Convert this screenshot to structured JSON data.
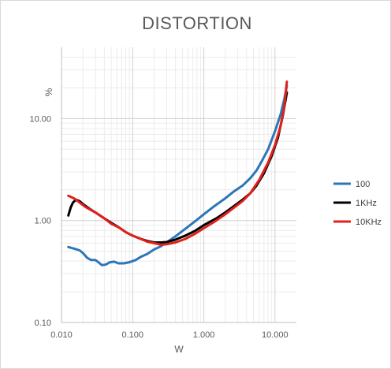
{
  "chart_data": {
    "type": "line",
    "title": "DISTORTION",
    "xlabel": "W",
    "ylabel": "%",
    "xscale": "log",
    "yscale": "log",
    "xlim": [
      0.01,
      20
    ],
    "ylim": [
      0.1,
      50
    ],
    "x_ticks": [
      {
        "value": 0.01,
        "label": "0.010"
      },
      {
        "value": 0.1,
        "label": "0.100"
      },
      {
        "value": 1,
        "label": "1.000"
      },
      {
        "value": 10,
        "label": "10.000"
      }
    ],
    "y_ticks": [
      {
        "value": 0.1,
        "label": "0.10"
      },
      {
        "value": 1,
        "label": "1.00"
      },
      {
        "value": 10,
        "label": "10.00"
      }
    ],
    "grid": true,
    "legend_position": "right",
    "series": [
      {
        "name": "100",
        "color": "#2e75b6",
        "points": [
          [
            0.0125,
            0.55
          ],
          [
            0.015,
            0.53
          ],
          [
            0.018,
            0.51
          ],
          [
            0.02,
            0.48
          ],
          [
            0.023,
            0.43
          ],
          [
            0.026,
            0.41
          ],
          [
            0.03,
            0.41
          ],
          [
            0.033,
            0.39
          ],
          [
            0.037,
            0.365
          ],
          [
            0.042,
            0.37
          ],
          [
            0.048,
            0.39
          ],
          [
            0.055,
            0.395
          ],
          [
            0.063,
            0.38
          ],
          [
            0.075,
            0.38
          ],
          [
            0.09,
            0.39
          ],
          [
            0.11,
            0.41
          ],
          [
            0.13,
            0.44
          ],
          [
            0.16,
            0.47
          ],
          [
            0.2,
            0.52
          ],
          [
            0.25,
            0.56
          ],
          [
            0.3,
            0.61
          ],
          [
            0.4,
            0.7
          ],
          [
            0.55,
            0.83
          ],
          [
            0.75,
            0.98
          ],
          [
            1.0,
            1.15
          ],
          [
            1.4,
            1.38
          ],
          [
            2.0,
            1.65
          ],
          [
            2.7,
            1.95
          ],
          [
            3.5,
            2.2
          ],
          [
            4.5,
            2.6
          ],
          [
            5.5,
            3.1
          ],
          [
            6.5,
            3.8
          ],
          [
            8.0,
            5.0
          ],
          [
            10.0,
            7.5
          ],
          [
            12.0,
            11.0
          ],
          [
            13.5,
            15.5
          ],
          [
            14.7,
            21.0
          ]
        ]
      },
      {
        "name": "1KHz",
        "color": "#000000",
        "points": [
          [
            0.0125,
            1.12
          ],
          [
            0.0135,
            1.35
          ],
          [
            0.0145,
            1.5
          ],
          [
            0.016,
            1.6
          ],
          [
            0.018,
            1.55
          ],
          [
            0.02,
            1.45
          ],
          [
            0.025,
            1.3
          ],
          [
            0.03,
            1.2
          ],
          [
            0.04,
            1.05
          ],
          [
            0.05,
            0.95
          ],
          [
            0.065,
            0.85
          ],
          [
            0.08,
            0.77
          ],
          [
            0.1,
            0.71
          ],
          [
            0.13,
            0.66
          ],
          [
            0.16,
            0.63
          ],
          [
            0.2,
            0.61
          ],
          [
            0.25,
            0.61
          ],
          [
            0.3,
            0.615
          ],
          [
            0.4,
            0.65
          ],
          [
            0.55,
            0.71
          ],
          [
            0.75,
            0.79
          ],
          [
            1.0,
            0.9
          ],
          [
            1.5,
            1.05
          ],
          [
            2.0,
            1.2
          ],
          [
            2.7,
            1.4
          ],
          [
            3.5,
            1.6
          ],
          [
            4.5,
            1.85
          ],
          [
            5.5,
            2.2
          ],
          [
            7.0,
            2.9
          ],
          [
            9.0,
            4.3
          ],
          [
            11.0,
            6.5
          ],
          [
            13.0,
            11.0
          ],
          [
            14.7,
            18.0
          ]
        ]
      },
      {
        "name": "10KHz",
        "color": "#e0201b",
        "points": [
          [
            0.0125,
            1.75
          ],
          [
            0.015,
            1.65
          ],
          [
            0.018,
            1.5
          ],
          [
            0.022,
            1.35
          ],
          [
            0.03,
            1.2
          ],
          [
            0.04,
            1.05
          ],
          [
            0.05,
            0.93
          ],
          [
            0.065,
            0.85
          ],
          [
            0.08,
            0.77
          ],
          [
            0.1,
            0.71
          ],
          [
            0.13,
            0.66
          ],
          [
            0.16,
            0.62
          ],
          [
            0.2,
            0.6
          ],
          [
            0.25,
            0.58
          ],
          [
            0.3,
            0.585
          ],
          [
            0.4,
            0.61
          ],
          [
            0.55,
            0.66
          ],
          [
            0.75,
            0.74
          ],
          [
            1.0,
            0.84
          ],
          [
            1.5,
            1.0
          ],
          [
            2.0,
            1.15
          ],
          [
            2.7,
            1.35
          ],
          [
            3.5,
            1.55
          ],
          [
            4.5,
            1.85
          ],
          [
            6.0,
            2.5
          ],
          [
            8.0,
            3.7
          ],
          [
            10.0,
            5.5
          ],
          [
            12.0,
            8.5
          ],
          [
            13.5,
            13.0
          ],
          [
            14.7,
            23.0
          ]
        ]
      }
    ]
  }
}
